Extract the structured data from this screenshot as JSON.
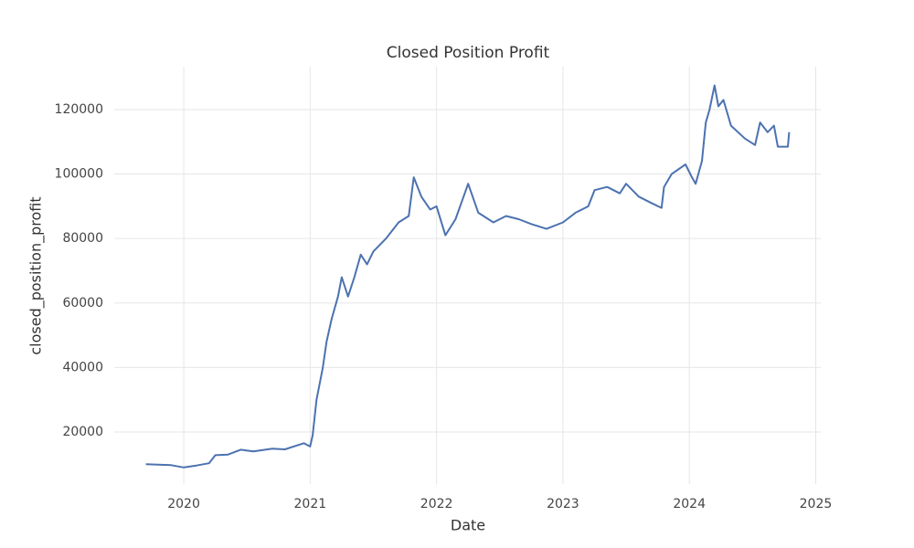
{
  "chart_data": {
    "type": "line",
    "title": "Closed Position Profit",
    "x_label": "Date",
    "y_label": "closed_position_profit",
    "series": [
      {
        "name": "closed_position_profit",
        "color": "#4c72b0",
        "x": [
          2019.7,
          2019.9,
          2020.0,
          2020.1,
          2020.2,
          2020.25,
          2020.35,
          2020.45,
          2020.55,
          2020.7,
          2020.8,
          2020.95,
          2021.0,
          2021.02,
          2021.05,
          2021.1,
          2021.13,
          2021.17,
          2021.22,
          2021.25,
          2021.3,
          2021.35,
          2021.4,
          2021.45,
          2021.5,
          2021.6,
          2021.7,
          2021.78,
          2021.82,
          2021.88,
          2021.95,
          2022.0,
          2022.07,
          2022.15,
          2022.25,
          2022.33,
          2022.45,
          2022.55,
          2022.65,
          2022.75,
          2022.87,
          2023.0,
          2023.1,
          2023.2,
          2023.25,
          2023.35,
          2023.45,
          2023.5,
          2023.6,
          2023.7,
          2023.78,
          2023.8,
          2023.86,
          2023.97,
          2024.02,
          2024.05,
          2024.1,
          2024.13,
          2024.16,
          2024.2,
          2024.23,
          2024.27,
          2024.33,
          2024.44,
          2024.52,
          2024.56,
          2024.62,
          2024.67,
          2024.7,
          2024.78,
          2024.79
        ],
        "values": [
          10000,
          9700,
          9000,
          9600,
          10300,
          12800,
          13000,
          14500,
          14000,
          14800,
          14600,
          16500,
          15500,
          19000,
          30000,
          40000,
          48000,
          55000,
          62000,
          68000,
          62000,
          68000,
          75000,
          72000,
          76000,
          80000,
          85000,
          87000,
          99000,
          93000,
          89000,
          90000,
          81000,
          86000,
          97000,
          88000,
          85000,
          87000,
          86000,
          84500,
          83000,
          85000,
          88000,
          90000,
          95000,
          96000,
          94000,
          97000,
          93000,
          91000,
          89500,
          96000,
          100000,
          103000,
          99000,
          97000,
          104000,
          116000,
          120000,
          127500,
          121000,
          123000,
          115000,
          111000,
          109000,
          116000,
          113000,
          115000,
          108500,
          108500,
          113000
        ]
      }
    ],
    "xlim": [
      2019.45,
      2025.04
    ],
    "xticks": [
      2020,
      2021,
      2022,
      2023,
      2024,
      2025
    ],
    "ylim": [
      3850,
      133300
    ],
    "yticks": [
      20000,
      40000,
      60000,
      80000,
      100000,
      120000
    ],
    "grid": true
  }
}
